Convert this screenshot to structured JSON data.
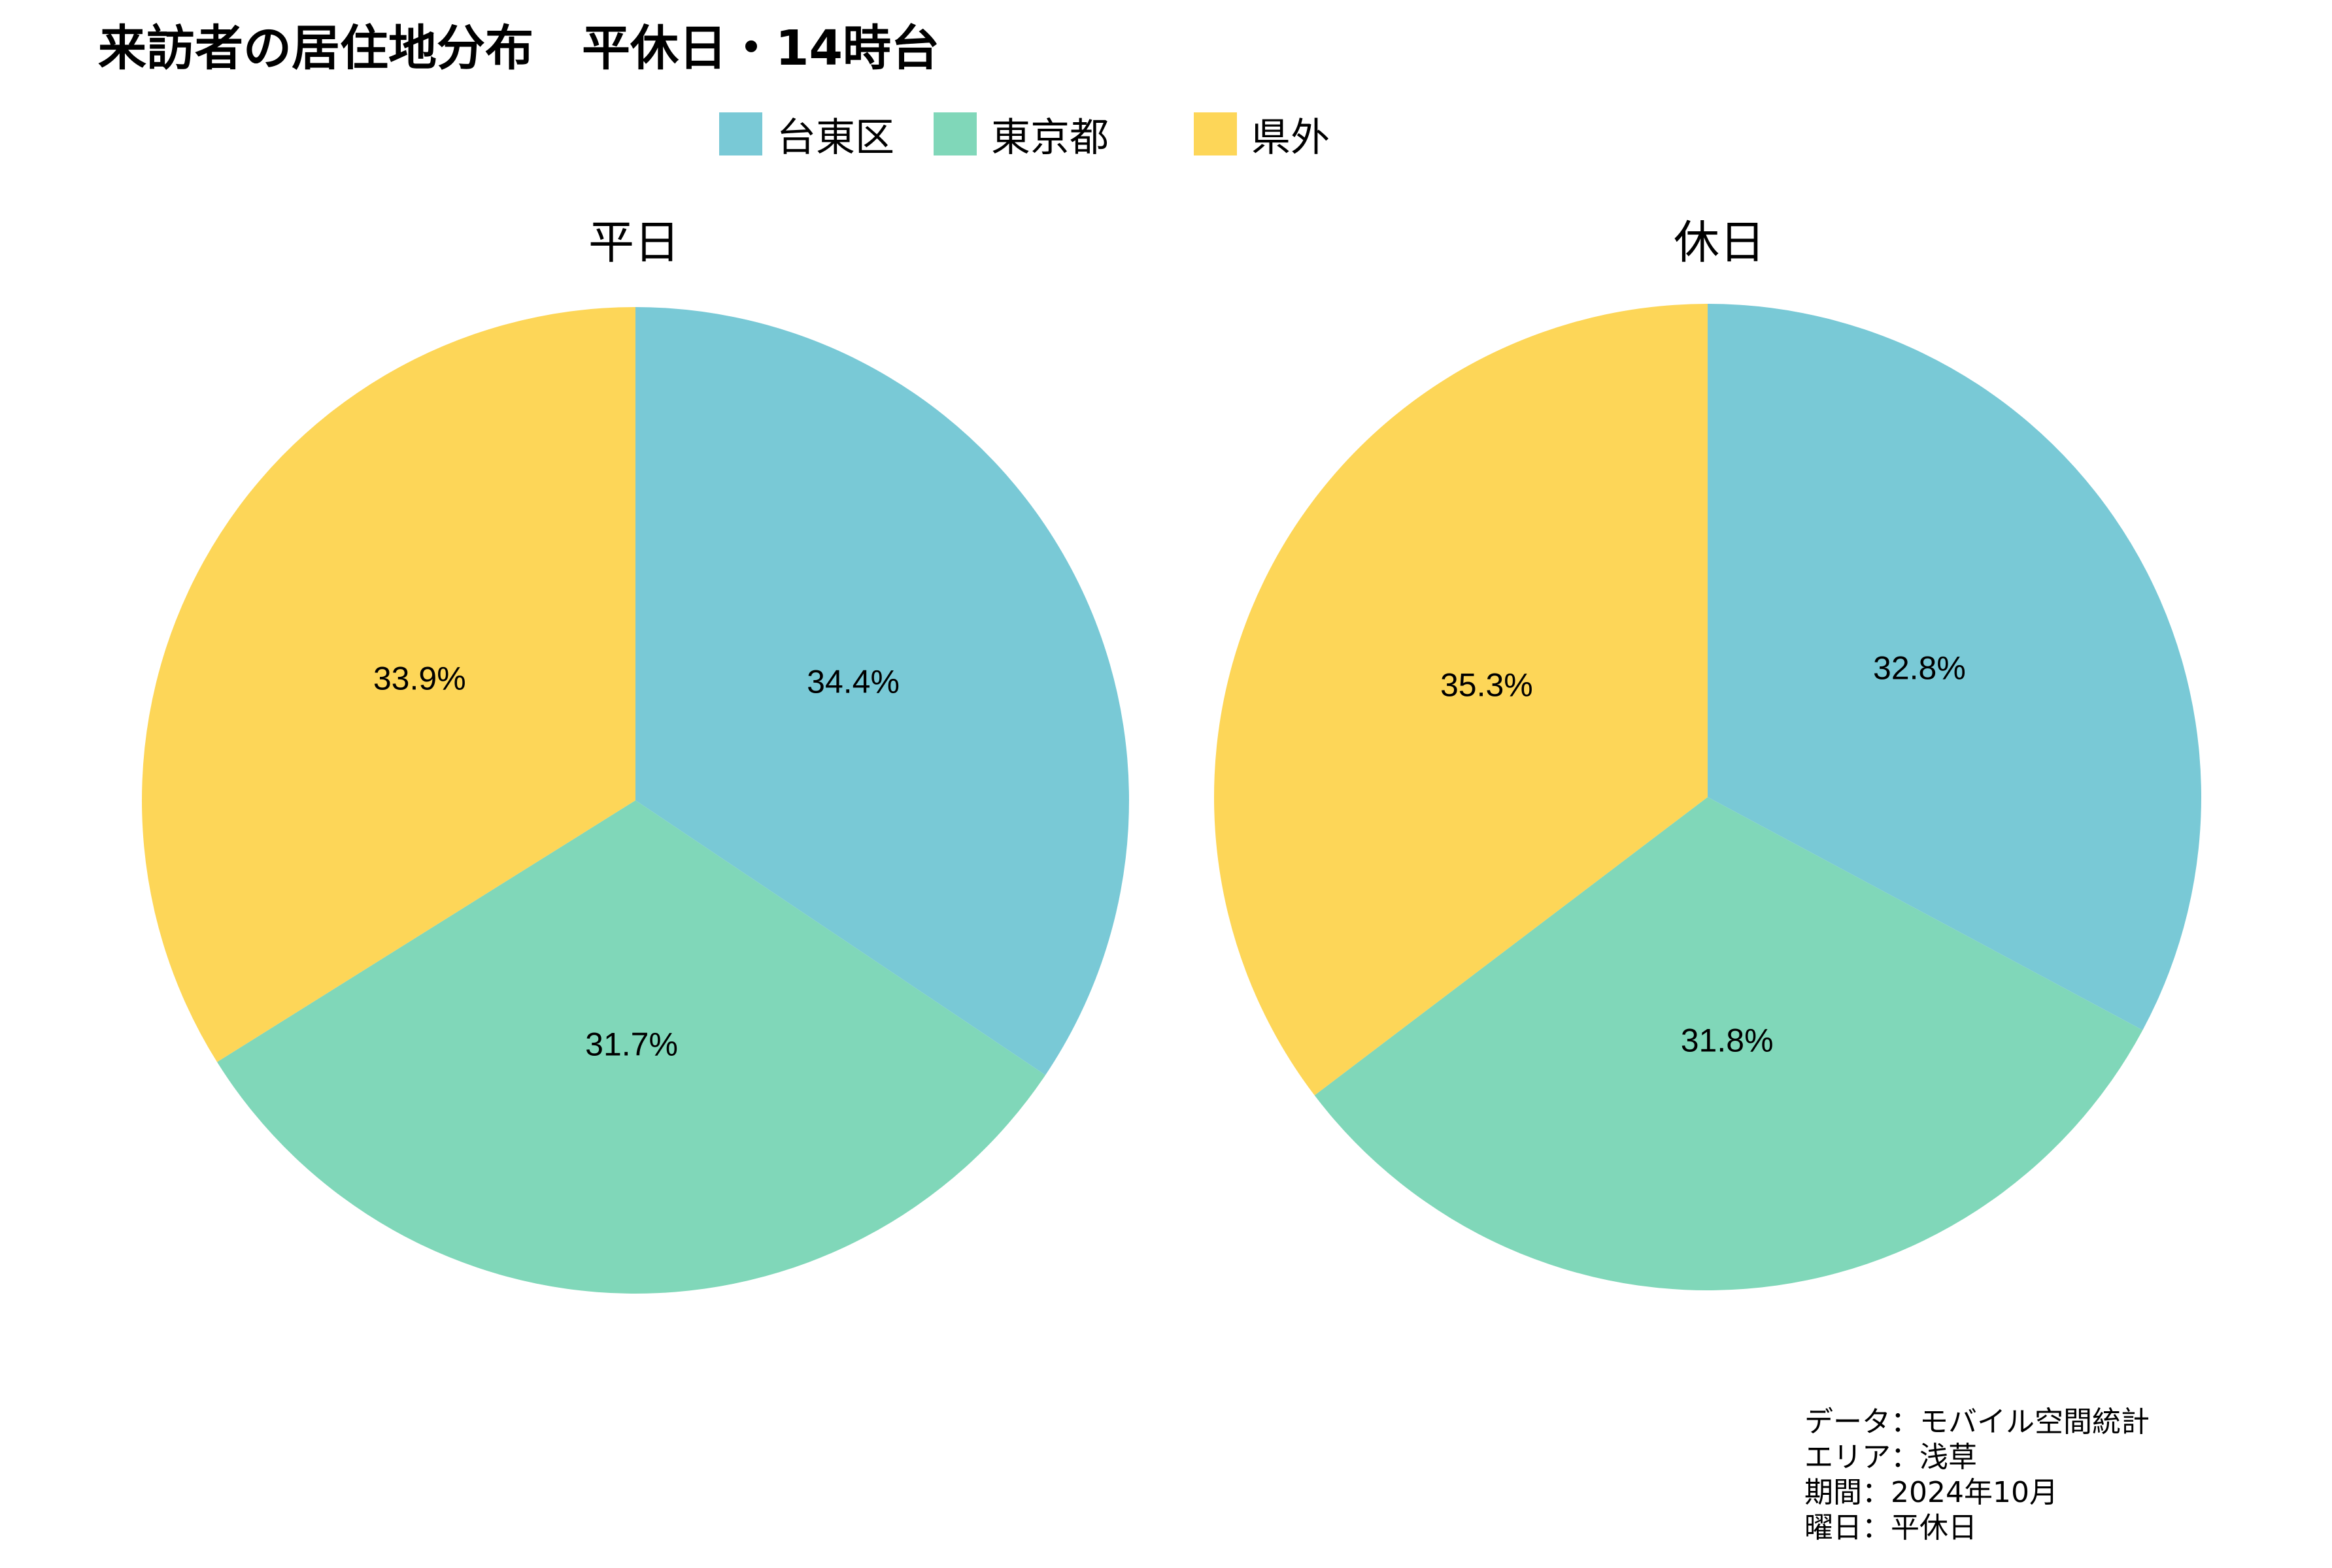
{
  "title": "来訪者の居住地分布　平休日・14時台",
  "legend": [
    {
      "label": "台東区",
      "color": "#79C9D6"
    },
    {
      "label": "東京都",
      "color": "#80D7B9"
    },
    {
      "label": "県外",
      "color": "#FDD658"
    }
  ],
  "chart_data": [
    {
      "type": "pie",
      "title": "平日",
      "categories": [
        "台東区",
        "東京都",
        "県外"
      ],
      "values": [
        34.4,
        31.7,
        33.9
      ],
      "labels": [
        "34.4%",
        "31.7%",
        "33.9%"
      ],
      "colors": [
        "#79C9D6",
        "#80D7B9",
        "#FDD658"
      ],
      "start": "top",
      "direction": "clockwise",
      "legend": "top"
    },
    {
      "type": "pie",
      "title": "休日",
      "categories": [
        "台東区",
        "東京都",
        "県外"
      ],
      "values": [
        32.8,
        31.8,
        35.3
      ],
      "labels": [
        "32.8%",
        "31.8%",
        "35.3%"
      ],
      "colors": [
        "#79C9D6",
        "#80D7B9",
        "#FDD658"
      ],
      "start": "top",
      "direction": "clockwise",
      "legend": "top"
    }
  ],
  "caption": [
    "データ：モバイル空間統計",
    "エリア：浅草",
    "期間：2024年10月",
    "曜日：平休日"
  ]
}
